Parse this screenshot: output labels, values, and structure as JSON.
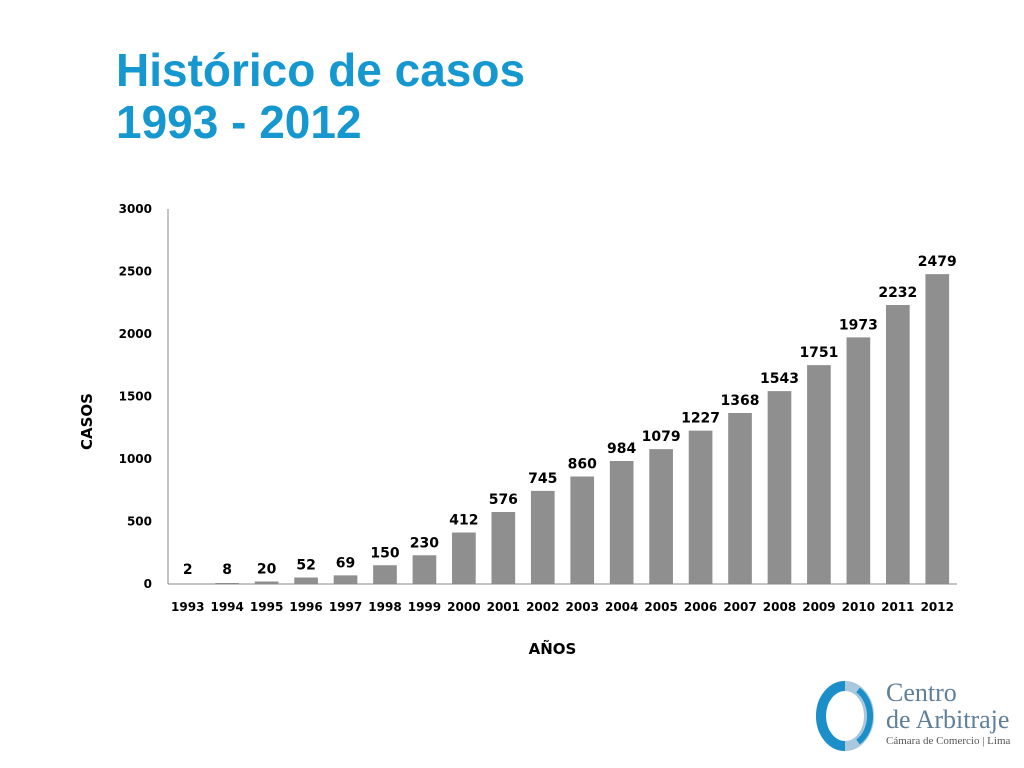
{
  "page": {
    "title_line1": "Histórico de casos",
    "title_line2": "1993 - 2012"
  },
  "colors": {
    "title": "#1597cf",
    "bar": "#8f8f8f",
    "axis": "#888888",
    "logo_ring_blue": "#1a8fc9",
    "logo_ring_light": "#a9c8dd",
    "logo_text": "#5f7f9a"
  },
  "logo": {
    "line1": "Centro",
    "line2": "de Arbitraje",
    "line3": "Cámara de Comercio | Lima",
    "icon": "ring-logo-icon"
  },
  "chart_data": {
    "type": "bar",
    "title": "Histórico de casos 1993 - 2012",
    "xlabel": "AÑOS",
    "ylabel": "CASOS",
    "ylim": [
      0,
      3000
    ],
    "yticks": [
      0,
      500,
      1000,
      1500,
      2000,
      2500,
      3000
    ],
    "grid": false,
    "legend": "none",
    "categories": [
      "1993",
      "1994",
      "1995",
      "1996",
      "1997",
      "1998",
      "1999",
      "2000",
      "2001",
      "2002",
      "2003",
      "2004",
      "2005",
      "2006",
      "2007",
      "2008",
      "2009",
      "2010",
      "2011",
      "2012"
    ],
    "values": [
      2,
      8,
      20,
      52,
      69,
      150,
      230,
      412,
      576,
      745,
      860,
      984,
      1079,
      1227,
      1368,
      1543,
      1751,
      1973,
      2232,
      2479
    ],
    "data_labels": true
  }
}
